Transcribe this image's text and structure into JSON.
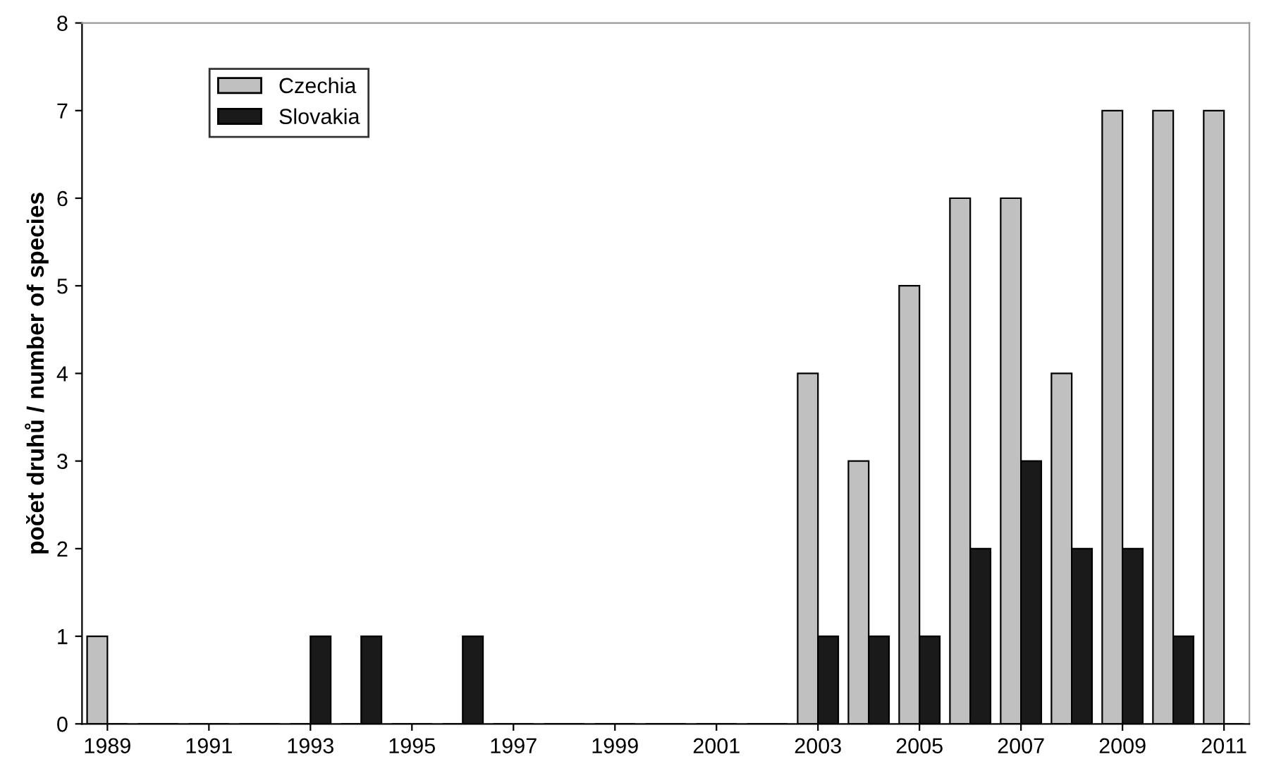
{
  "chart_data": {
    "type": "bar",
    "ylabel": "počet druhů / number of species",
    "categories": [
      "1989",
      null,
      "1991",
      null,
      "1993",
      null,
      "1995",
      null,
      "1997",
      null,
      "1999",
      null,
      "2001",
      null,
      "2003",
      null,
      "2005",
      null,
      "2007",
      null,
      "2009",
      null,
      "2011"
    ],
    "series": [
      {
        "name": "Czechia",
        "color": "#c0c0c0",
        "values": [
          1,
          0,
          0,
          0,
          0,
          0,
          0,
          0,
          0,
          0,
          0,
          0,
          0,
          0,
          4,
          3,
          5,
          6,
          6,
          4,
          7,
          7,
          7
        ]
      },
      {
        "name": "Slovakia",
        "color": "#1a1a1a",
        "values": [
          0,
          0,
          0,
          0,
          1,
          1,
          0,
          1,
          0,
          0,
          0,
          0,
          0,
          0,
          1,
          1,
          1,
          2,
          3,
          2,
          2,
          1,
          0
        ]
      }
    ],
    "ylim": [
      0,
      8
    ],
    "yticks": [
      0,
      1,
      2,
      3,
      4,
      5,
      6,
      7,
      8
    ],
    "grid": false,
    "legend": "top left"
  }
}
